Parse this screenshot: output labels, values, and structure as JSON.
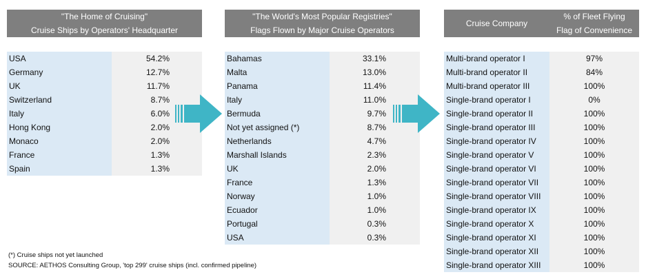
{
  "panel1": {
    "title_line1": "\"The Home of Cruising\"",
    "title_line2": "Cruise Ships by Operators' Headquarter",
    "rows": [
      {
        "name": "USA",
        "value": "54.2%"
      },
      {
        "name": "Germany",
        "value": "12.7%"
      },
      {
        "name": "UK",
        "value": "11.7%"
      },
      {
        "name": "Switzerland",
        "value": "8.7%"
      },
      {
        "name": "Italy",
        "value": "6.0%"
      },
      {
        "name": "Hong Kong",
        "value": "2.0%"
      },
      {
        "name": "Monaco",
        "value": "2.0%"
      },
      {
        "name": "France",
        "value": "1.3%"
      },
      {
        "name": "Spain",
        "value": "1.3%"
      }
    ]
  },
  "panel2": {
    "title_line1": "\"The World's Most Popular Registries\"",
    "title_line2": "Flags Flown by Major Cruise Operators",
    "rows": [
      {
        "name": "Bahamas",
        "value": "33.1%"
      },
      {
        "name": "Malta",
        "value": "13.0%"
      },
      {
        "name": "Panama",
        "value": "11.4%"
      },
      {
        "name": "Italy",
        "value": "11.0%"
      },
      {
        "name": "Bermuda",
        "value": "9.7%"
      },
      {
        "name": "Not yet assigned (*)",
        "value": "8.7%"
      },
      {
        "name": "Netherlands",
        "value": "4.7%"
      },
      {
        "name": "Marshall Islands",
        "value": "2.3%"
      },
      {
        "name": "UK",
        "value": "2.0%"
      },
      {
        "name": "France",
        "value": "1.3%"
      },
      {
        "name": "Norway",
        "value": "1.0%"
      },
      {
        "name": "Ecuador",
        "value": "1.0%"
      },
      {
        "name": "Portugal",
        "value": "0.3%"
      },
      {
        "name": "USA",
        "value": "0.3%"
      }
    ]
  },
  "panel3": {
    "col1_header": "Cruise Company",
    "col2_header_line1": "% of Fleet Flying",
    "col2_header_line2": "Flag of Convenience",
    "rows": [
      {
        "name": "Multi-brand operator I",
        "value": "97%"
      },
      {
        "name": "Multi-brand operator II",
        "value": "84%"
      },
      {
        "name": "Multi-brand operator III",
        "value": "100%"
      },
      {
        "name": "Single-brand operator I",
        "value": "0%"
      },
      {
        "name": "Single-brand operator II",
        "value": "100%"
      },
      {
        "name": "Single-brand operator III",
        "value": "100%"
      },
      {
        "name": "Single-brand operator IV",
        "value": "100%"
      },
      {
        "name": "Single-brand operator V",
        "value": "100%"
      },
      {
        "name": "Single-brand operator VI",
        "value": "100%"
      },
      {
        "name": "Single-brand operator VII",
        "value": "100%"
      },
      {
        "name": "Single-brand operator VIII",
        "value": "100%"
      },
      {
        "name": "Single-brand operator IX",
        "value": "100%"
      },
      {
        "name": "Single-brand operator X",
        "value": "100%"
      },
      {
        "name": "Single-brand operator XI",
        "value": "100%"
      },
      {
        "name": "Single-brand operator XII",
        "value": "100%"
      },
      {
        "name": "Single-brand operator XIII",
        "value": "100%"
      }
    ]
  },
  "footnote": {
    "line1": "(*) Cruise ships not yet launched",
    "line2": "SOURCE: AETHOS Consulting Group,  'top 299' cruise ships (incl. confirmed pipeline)"
  },
  "icons": [
    "arrow-right-icon"
  ],
  "colors": {
    "header": "#7f7f7f",
    "name_cell": "#dbe9f5",
    "value_cell": "#f0f0f0",
    "arrow": "#3fb5c6"
  }
}
